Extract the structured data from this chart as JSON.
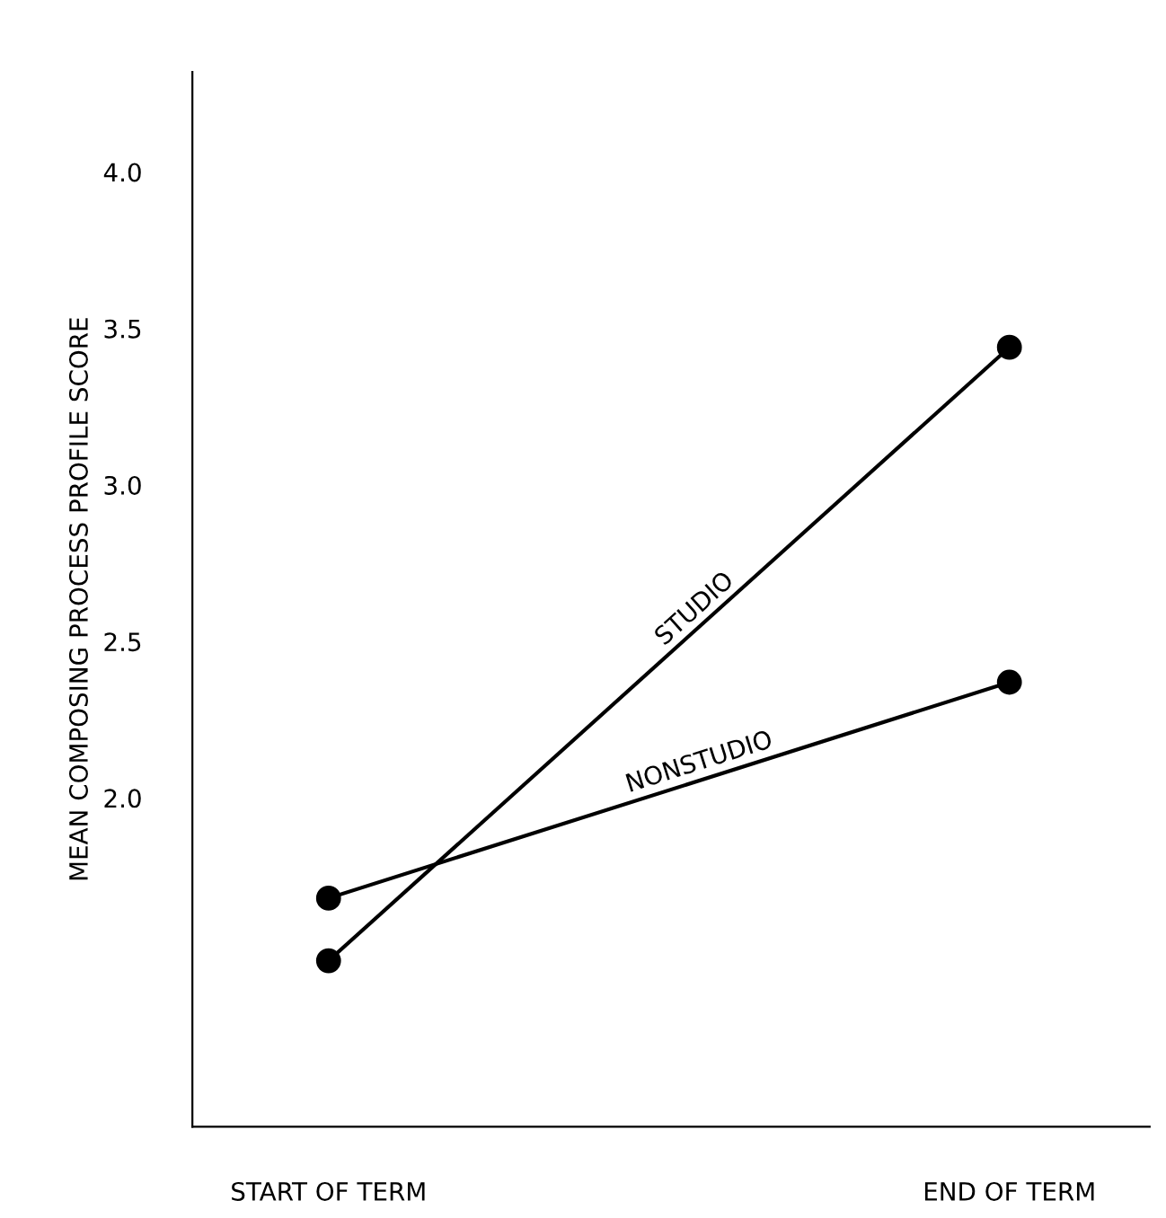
{
  "chart_data": {
    "type": "line",
    "ylabel": "MEAN COMPOSING PROCESS PROFILE SCORE",
    "categories": [
      "START OF TERM",
      "END OF TERM"
    ],
    "series": [
      {
        "name": "STUDIO",
        "color": "#000000",
        "values": [
          1.48,
          3.44
        ]
      },
      {
        "name": "NONSTUDIO",
        "color": "#000000",
        "values": [
          1.68,
          2.37
        ]
      }
    ],
    "ylim": [
      0.95,
      4.32
    ],
    "yticks": [
      {
        "value": 2,
        "label": "2.0"
      },
      2.5,
      {
        "value": 3,
        "label": "3.0"
      },
      3.5,
      {
        "value": 4,
        "label": "4.0"
      }
    ],
    "grid": false,
    "legend": false,
    "marker": "circle",
    "line_style": "solid"
  }
}
